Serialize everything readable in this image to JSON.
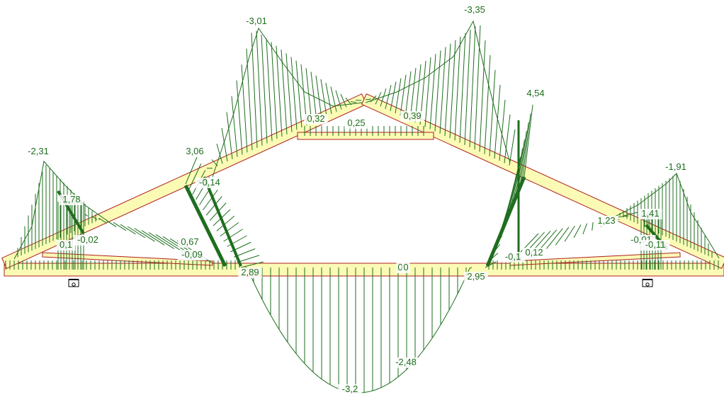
{
  "diagram": {
    "type": "truss moment diagram",
    "colors": {
      "background": "#ffffff",
      "member_fill": "#fbfbb6",
      "member_edge": "#b01c1c",
      "diagram_line": "#1e6e1e",
      "label_text": "#1e6e1e"
    },
    "labels": [
      {
        "id": "top-left-rafter-peak",
        "text": "-3,01"
      },
      {
        "id": "top-right-rafter-peak",
        "text": "-3,35"
      },
      {
        "id": "apex-left",
        "text": "0,32"
      },
      {
        "id": "apex-mid",
        "text": "0,25"
      },
      {
        "id": "apex-right",
        "text": "0,39"
      },
      {
        "id": "right-web-peak",
        "text": "4,54"
      },
      {
        "id": "left-overhang-peak",
        "text": "-2,31"
      },
      {
        "id": "left-web-peak",
        "text": "3,06"
      },
      {
        "id": "left-web-minor",
        "text": "-0,14"
      },
      {
        "id": "left-heel-peak",
        "text": "1,78"
      },
      {
        "id": "left-heel-a",
        "text": "0,1"
      },
      {
        "id": "left-heel-b",
        "text": "-0,02"
      },
      {
        "id": "left-chord-a",
        "text": "0,67"
      },
      {
        "id": "left-chord-b",
        "text": "-0,09"
      },
      {
        "id": "right-overhang-peak",
        "text": "-1,91"
      },
      {
        "id": "right-heel-peak",
        "text": "1,41"
      },
      {
        "id": "right-rafter-mid",
        "text": "1,23"
      },
      {
        "id": "right-heel-a",
        "text": "-0,01"
      },
      {
        "id": "right-heel-b",
        "text": "-0,11"
      },
      {
        "id": "right-chord-a",
        "text": "-0,1"
      },
      {
        "id": "right-chord-b",
        "text": "0,12"
      },
      {
        "id": "bottom-chord-left",
        "text": "2,89"
      },
      {
        "id": "bottom-chord-center",
        "text": "0"
      },
      {
        "id": "bottom-chord-center-b",
        "text": "0"
      },
      {
        "id": "bottom-chord-right",
        "text": "2,95"
      },
      {
        "id": "bottom-chord-mid",
        "text": "-2,48"
      },
      {
        "id": "bottom-chord-max",
        "text": "-3,2"
      }
    ]
  }
}
